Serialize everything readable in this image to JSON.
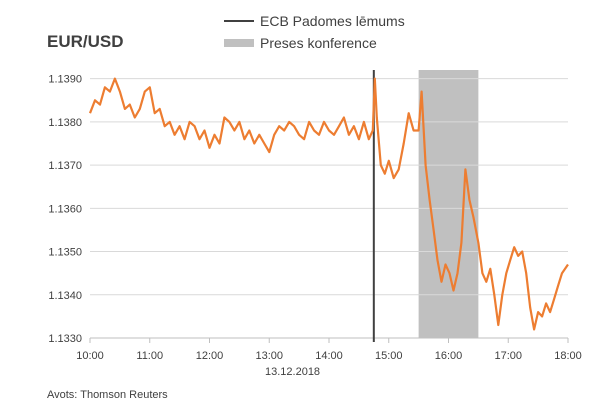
{
  "chart_data": {
    "type": "line",
    "title": "EUR/USD",
    "xlabel": "13.12.2018",
    "source": "Avots: Thomson Reuters",
    "x_ticks": [
      "10:00",
      "11:00",
      "12:00",
      "13:00",
      "14:00",
      "15:00",
      "16:00",
      "17:00",
      "18:00"
    ],
    "xlim": [
      "10:00",
      "18:00"
    ],
    "ylim": [
      1.133,
      1.1392
    ],
    "y_ticks": [
      "1.1330",
      "1.1340",
      "1.1350",
      "1.1360",
      "1.1370",
      "1.1380",
      "1.1390"
    ],
    "grid": "horizontal",
    "legend": [
      {
        "name": "ECB Padomes lēmums",
        "style": "line",
        "color": "#404040"
      },
      {
        "name": "Preses konference",
        "style": "band",
        "color": "#c0c0c0"
      }
    ],
    "annotations": {
      "ecb_decision_time": "14:45",
      "press_conference": [
        "15:30",
        "16:30"
      ]
    },
    "series": [
      {
        "color": "#ed7d31",
        "points": [
          [
            "10:00",
            1.1382
          ],
          [
            "10:05",
            1.1385
          ],
          [
            "10:10",
            1.1384
          ],
          [
            "10:15",
            1.1388
          ],
          [
            "10:20",
            1.1387
          ],
          [
            "10:25",
            1.139
          ],
          [
            "10:30",
            1.1387
          ],
          [
            "10:35",
            1.1383
          ],
          [
            "10:40",
            1.1384
          ],
          [
            "10:45",
            1.1381
          ],
          [
            "10:50",
            1.1383
          ],
          [
            "10:55",
            1.1387
          ],
          [
            "11:00",
            1.1388
          ],
          [
            "11:05",
            1.1382
          ],
          [
            "11:10",
            1.1383
          ],
          [
            "11:15",
            1.1379
          ],
          [
            "11:20",
            1.138
          ],
          [
            "11:25",
            1.1377
          ],
          [
            "11:30",
            1.1379
          ],
          [
            "11:35",
            1.1376
          ],
          [
            "11:40",
            1.138
          ],
          [
            "11:45",
            1.1379
          ],
          [
            "11:50",
            1.1376
          ],
          [
            "11:55",
            1.1378
          ],
          [
            "12:00",
            1.1374
          ],
          [
            "12:05",
            1.1377
          ],
          [
            "12:10",
            1.1375
          ],
          [
            "12:15",
            1.1381
          ],
          [
            "12:20",
            1.138
          ],
          [
            "12:25",
            1.1378
          ],
          [
            "12:30",
            1.138
          ],
          [
            "12:35",
            1.1376
          ],
          [
            "12:40",
            1.1378
          ],
          [
            "12:45",
            1.1375
          ],
          [
            "12:50",
            1.1377
          ],
          [
            "12:55",
            1.1375
          ],
          [
            "13:00",
            1.1373
          ],
          [
            "13:05",
            1.1377
          ],
          [
            "13:10",
            1.1379
          ],
          [
            "13:15",
            1.1378
          ],
          [
            "13:20",
            1.138
          ],
          [
            "13:25",
            1.1379
          ],
          [
            "13:30",
            1.1377
          ],
          [
            "13:35",
            1.1376
          ],
          [
            "13:40",
            1.138
          ],
          [
            "13:45",
            1.1378
          ],
          [
            "13:50",
            1.1377
          ],
          [
            "13:55",
            1.138
          ],
          [
            "14:00",
            1.1378
          ],
          [
            "14:05",
            1.1377
          ],
          [
            "14:10",
            1.1379
          ],
          [
            "14:15",
            1.1381
          ],
          [
            "14:20",
            1.1377
          ],
          [
            "14:25",
            1.1379
          ],
          [
            "14:30",
            1.1376
          ],
          [
            "14:35",
            1.138
          ],
          [
            "14:40",
            1.1376
          ],
          [
            "14:44",
            1.1378
          ],
          [
            "14:46",
            1.139
          ],
          [
            "14:48",
            1.1381
          ],
          [
            "14:52",
            1.137
          ],
          [
            "14:56",
            1.1368
          ],
          [
            "15:00",
            1.1371
          ],
          [
            "15:05",
            1.1367
          ],
          [
            "15:10",
            1.1369
          ],
          [
            "15:15",
            1.1375
          ],
          [
            "15:20",
            1.1382
          ],
          [
            "15:25",
            1.1378
          ],
          [
            "15:30",
            1.1378
          ],
          [
            "15:33",
            1.1387
          ],
          [
            "15:37",
            1.137
          ],
          [
            "15:41",
            1.1362
          ],
          [
            "15:45",
            1.1355
          ],
          [
            "15:49",
            1.1348
          ],
          [
            "15:53",
            1.1343
          ],
          [
            "15:57",
            1.1347
          ],
          [
            "16:01",
            1.1345
          ],
          [
            "16:05",
            1.1341
          ],
          [
            "16:09",
            1.1345
          ],
          [
            "16:13",
            1.1352
          ],
          [
            "16:17",
            1.1369
          ],
          [
            "16:21",
            1.1362
          ],
          [
            "16:25",
            1.1358
          ],
          [
            "16:30",
            1.1352
          ],
          [
            "16:34",
            1.1345
          ],
          [
            "16:38",
            1.1343
          ],
          [
            "16:42",
            1.1346
          ],
          [
            "16:46",
            1.134
          ],
          [
            "16:50",
            1.1333
          ],
          [
            "16:54",
            1.134
          ],
          [
            "16:58",
            1.1345
          ],
          [
            "17:02",
            1.1348
          ],
          [
            "17:06",
            1.1351
          ],
          [
            "17:10",
            1.1349
          ],
          [
            "17:14",
            1.135
          ],
          [
            "17:18",
            1.1345
          ],
          [
            "17:22",
            1.1337
          ],
          [
            "17:26",
            1.1332
          ],
          [
            "17:30",
            1.1336
          ],
          [
            "17:34",
            1.1335
          ],
          [
            "17:38",
            1.1338
          ],
          [
            "17:42",
            1.1336
          ],
          [
            "17:46",
            1.1339
          ],
          [
            "17:50",
            1.1342
          ],
          [
            "17:54",
            1.1345
          ],
          [
            "18:00",
            1.1347
          ]
        ]
      }
    ]
  }
}
